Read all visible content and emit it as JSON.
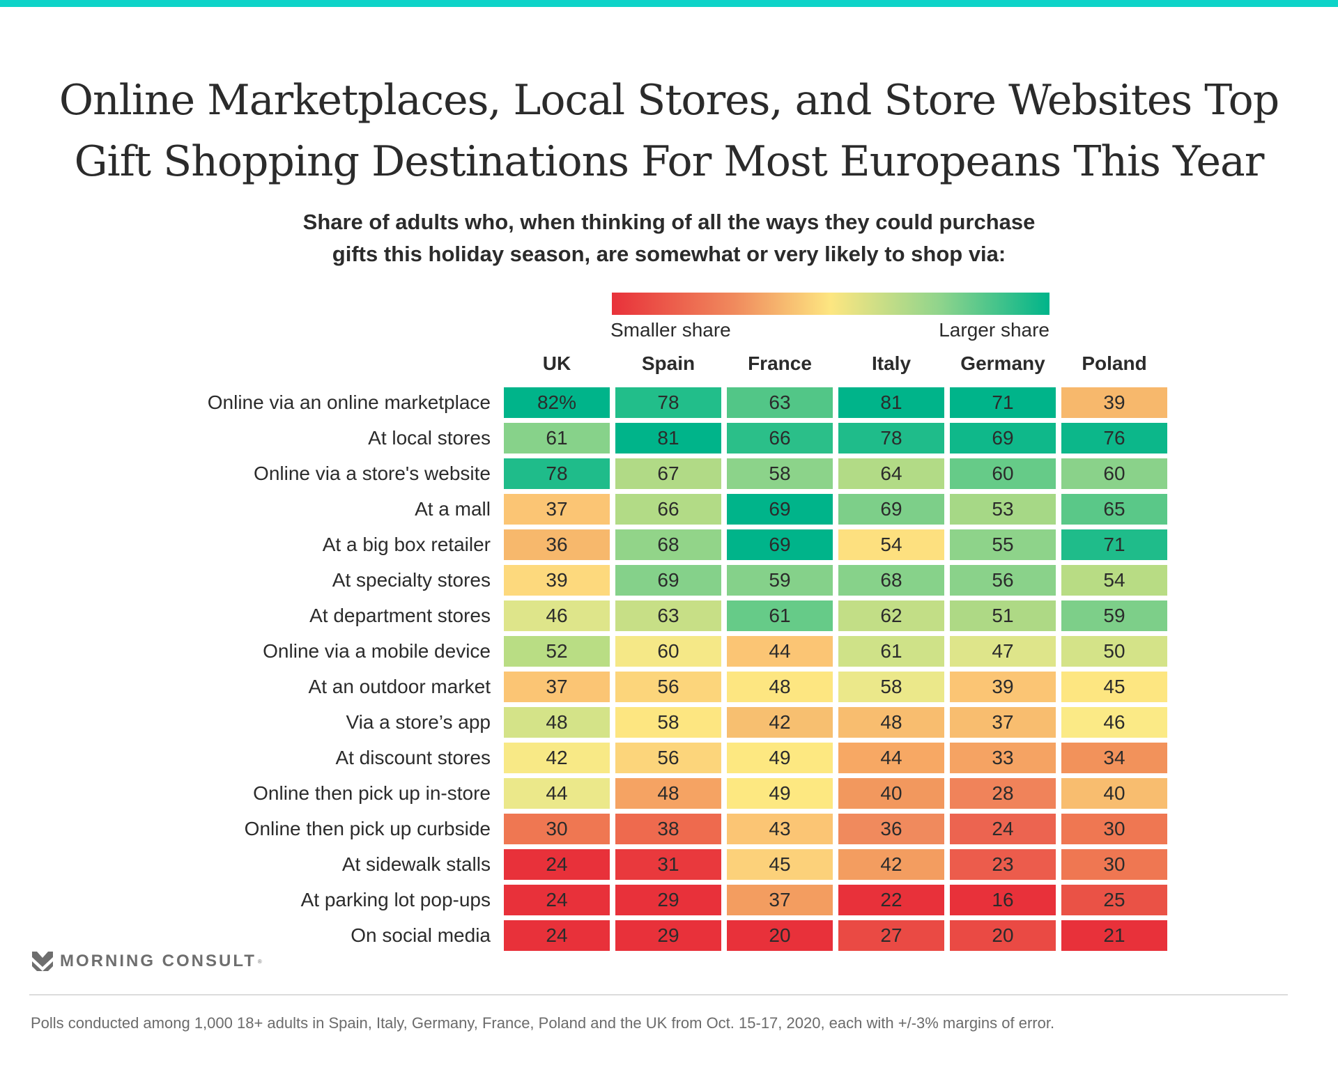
{
  "header": {
    "title_line1": "Online Marketplaces, Local Stores, and Store Websites Top",
    "title_line2": "Gift Shopping Destinations For Most Europeans This Year",
    "subtitle_line1": "Share of adults who, when thinking of all the ways they could purchase",
    "subtitle_line2": "gifts this holiday season, are somewhat or very likely to shop via:"
  },
  "legend": {
    "low_label": "Smaller share",
    "high_label": "Larger share",
    "low_color": "#e8313a",
    "mid_color": "#fde681",
    "high_color": "#00b48a"
  },
  "brand": {
    "logo_text": "MORNING CONSULT",
    "registered_mark": "®",
    "accent_color": "#0dd3c8"
  },
  "footer": {
    "note": "Polls conducted among 1,000 18+ adults in Spain, Italy, Germany, France, Poland and the UK from Oct. 15-17, 2020, each with +/-3% margins of error."
  },
  "chart_data": {
    "type": "heatmap",
    "title": "Online Marketplaces, Local Stores, and Store Websites Top Gift Shopping Destinations For Most Europeans This Year",
    "unit": "%",
    "columns": [
      "UK",
      "Spain",
      "France",
      "Italy",
      "Germany",
      "Poland"
    ],
    "rows": [
      "Online via an online marketplace",
      "At local stores",
      "Online via a store's website",
      "At a mall",
      "At a big box retailer",
      "At specialty stores",
      "At department stores",
      "Online via a mobile device",
      "At an outdoor market",
      "Via a store’s app",
      "At discount stores",
      "Online then pick up in-store",
      "Online then pick up curbside",
      "At sidewalk stalls",
      "At parking lot pop-ups",
      "On social media"
    ],
    "values": [
      [
        82,
        78,
        63,
        81,
        71,
        39
      ],
      [
        61,
        81,
        66,
        78,
        69,
        76
      ],
      [
        78,
        67,
        58,
        64,
        60,
        60
      ],
      [
        37,
        66,
        69,
        69,
        53,
        65
      ],
      [
        36,
        68,
        69,
        54,
        55,
        71
      ],
      [
        39,
        69,
        59,
        68,
        56,
        54
      ],
      [
        46,
        63,
        61,
        62,
        51,
        59
      ],
      [
        52,
        60,
        44,
        61,
        47,
        50
      ],
      [
        37,
        56,
        48,
        58,
        39,
        45
      ],
      [
        48,
        58,
        42,
        48,
        37,
        46
      ],
      [
        42,
        56,
        49,
        44,
        33,
        34
      ],
      [
        44,
        48,
        49,
        40,
        28,
        40
      ],
      [
        30,
        38,
        43,
        36,
        24,
        30
      ],
      [
        24,
        31,
        45,
        42,
        23,
        30
      ],
      [
        24,
        29,
        37,
        22,
        16,
        25
      ],
      [
        24,
        29,
        20,
        27,
        20,
        21
      ]
    ],
    "first_cell_label": "82%",
    "cell_colors": [
      [
        "#00b48a",
        "#22be8a",
        "#52c687",
        "#00b48a",
        "#00b48a",
        "#f7b86c"
      ],
      [
        "#87d28a",
        "#00b48a",
        "#2bbf89",
        "#1fbc8a",
        "#0fb88a",
        "#0cb78a"
      ],
      [
        "#1fbc8a",
        "#b1da86",
        "#8cd38a",
        "#b2db86",
        "#66cb88",
        "#8ad28a"
      ],
      [
        "#fbc574",
        "#b2db86",
        "#00b48a",
        "#7dcf89",
        "#a6d886",
        "#5ac888"
      ],
      [
        "#f7b86c",
        "#92d489",
        "#00b48a",
        "#fde07f",
        "#8ed38a",
        "#1fbc8a"
      ],
      [
        "#fdd97d",
        "#85d18a",
        "#85d18a",
        "#87d28a",
        "#8ad28a",
        "#b8dc84"
      ],
      [
        "#dee58a",
        "#c7df86",
        "#66cb88",
        "#c2de86",
        "#aed985",
        "#7dcf89"
      ],
      [
        "#b9dd84",
        "#f5e887",
        "#fbc574",
        "#cfe288",
        "#dee58a",
        "#d4e388"
      ],
      [
        "#fbc574",
        "#fcd57b",
        "#fde681",
        "#ebe88a",
        "#fbc574",
        "#fde681"
      ],
      [
        "#d4e388",
        "#fde681",
        "#f7bf70",
        "#f8bd6f",
        "#f8bd6f",
        "#fbea86"
      ],
      [
        "#f8e986",
        "#fcd57b",
        "#fde881",
        "#f7a864",
        "#f5a363",
        "#f2925b"
      ],
      [
        "#ebe88a",
        "#f5a363",
        "#fde881",
        "#f2985e",
        "#f0835a",
        "#f8bd6f"
      ],
      [
        "#ef7752",
        "#ee6a4e",
        "#fbc574",
        "#f08a5d",
        "#ec6450",
        "#ef7752"
      ],
      [
        "#e8313a",
        "#e9393d",
        "#fcd17a",
        "#f39d60",
        "#ec5c4c",
        "#ef7752"
      ],
      [
        "#e8313a",
        "#e8313a",
        "#f39d60",
        "#e8313a",
        "#e8313a",
        "#ea5246"
      ],
      [
        "#e8313a",
        "#e8313a",
        "#e8313a",
        "#ea4a44",
        "#ea4a44",
        "#e8313a"
      ]
    ]
  }
}
